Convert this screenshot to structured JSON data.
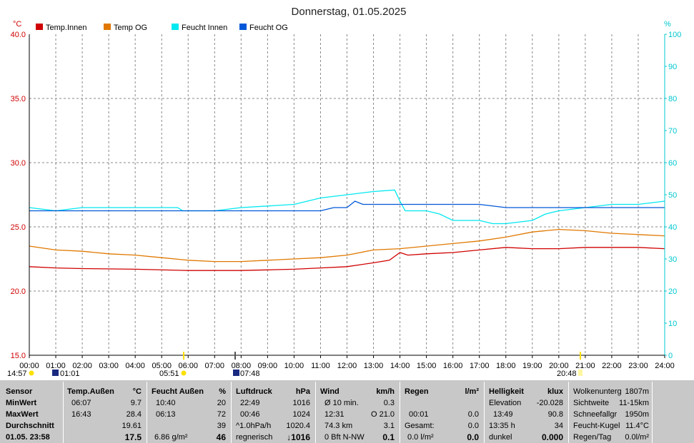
{
  "chart_data": {
    "type": "line",
    "title": "Donnerstag, 01.05.2025",
    "left_unit": "°C",
    "right_unit": "%",
    "ylim_left": [
      15,
      40
    ],
    "ylim_right": [
      0,
      100
    ],
    "left_ticks": [
      "15.0",
      "20.0",
      "25.0",
      "30.0",
      "35.0",
      "40.0"
    ],
    "right_ticks": [
      "0",
      "10",
      "20",
      "30",
      "40",
      "50",
      "60",
      "70",
      "80",
      "90",
      "100"
    ],
    "x_ticks": [
      "00:00",
      "01:00",
      "02:00",
      "03:00",
      "04:00",
      "05:00",
      "06:00",
      "07:00",
      "08:00",
      "09:00",
      "10:00",
      "11:00",
      "12:00",
      "13:00",
      "14:00",
      "15:00",
      "16:00",
      "17:00",
      "18:00",
      "19:00",
      "20:00",
      "21:00",
      "22:00",
      "23:00",
      "24:00"
    ],
    "grid": true,
    "legend_position": "top",
    "series": [
      {
        "name": "Temp.Innen",
        "color": "#d00000",
        "axis": "left",
        "points": [
          [
            0,
            21.9
          ],
          [
            1,
            21.8
          ],
          [
            2,
            21.75
          ],
          [
            4,
            21.7
          ],
          [
            6,
            21.6
          ],
          [
            8,
            21.6
          ],
          [
            9,
            21.65
          ],
          [
            10,
            21.7
          ],
          [
            11,
            21.8
          ],
          [
            12,
            21.9
          ],
          [
            13,
            22.2
          ],
          [
            13.6,
            22.4
          ],
          [
            14,
            23.0
          ],
          [
            14.3,
            22.8
          ],
          [
            15,
            22.9
          ],
          [
            16,
            23.0
          ],
          [
            17,
            23.2
          ],
          [
            18,
            23.4
          ],
          [
            19,
            23.3
          ],
          [
            20,
            23.3
          ],
          [
            21,
            23.4
          ],
          [
            22,
            23.4
          ],
          [
            23,
            23.4
          ],
          [
            24,
            23.3
          ]
        ]
      },
      {
        "name": "Temp OG",
        "color": "#e07800",
        "axis": "left",
        "points": [
          [
            0,
            23.5
          ],
          [
            1,
            23.2
          ],
          [
            2,
            23.1
          ],
          [
            3,
            22.9
          ],
          [
            4,
            22.8
          ],
          [
            5,
            22.6
          ],
          [
            6,
            22.4
          ],
          [
            7,
            22.3
          ],
          [
            8,
            22.3
          ],
          [
            9,
            22.4
          ],
          [
            10,
            22.5
          ],
          [
            11,
            22.6
          ],
          [
            12,
            22.8
          ],
          [
            13,
            23.2
          ],
          [
            14,
            23.3
          ],
          [
            15,
            23.5
          ],
          [
            16,
            23.7
          ],
          [
            17,
            23.9
          ],
          [
            18,
            24.2
          ],
          [
            19,
            24.6
          ],
          [
            20,
            24.8
          ],
          [
            21,
            24.7
          ],
          [
            22,
            24.5
          ],
          [
            23,
            24.4
          ],
          [
            24,
            24.3
          ]
        ]
      },
      {
        "name": "Feucht Innen",
        "color": "#00e8f0",
        "axis": "right",
        "points": [
          [
            0,
            46
          ],
          [
            1,
            45
          ],
          [
            2,
            46
          ],
          [
            4,
            46
          ],
          [
            5.6,
            46
          ],
          [
            5.8,
            45
          ],
          [
            6,
            45
          ],
          [
            7,
            45
          ],
          [
            8,
            46
          ],
          [
            9,
            46.5
          ],
          [
            10,
            47
          ],
          [
            11,
            49
          ],
          [
            12,
            50
          ],
          [
            13,
            51
          ],
          [
            13.8,
            51.5
          ],
          [
            14,
            48
          ],
          [
            14.2,
            45
          ],
          [
            15,
            45
          ],
          [
            15.5,
            44
          ],
          [
            16,
            42
          ],
          [
            17,
            42
          ],
          [
            17.5,
            41
          ],
          [
            18,
            41
          ],
          [
            19,
            42
          ],
          [
            19.5,
            44
          ],
          [
            20,
            45
          ],
          [
            21,
            46
          ],
          [
            22,
            47
          ],
          [
            23,
            47
          ],
          [
            24,
            48
          ]
        ]
      },
      {
        "name": "Feucht OG",
        "color": "#0058d8",
        "axis": "right",
        "points": [
          [
            0,
            45
          ],
          [
            2,
            45
          ],
          [
            4,
            45
          ],
          [
            6,
            45
          ],
          [
            8,
            45
          ],
          [
            10,
            45
          ],
          [
            11,
            45
          ],
          [
            11.5,
            46
          ],
          [
            12,
            46
          ],
          [
            12.3,
            48
          ],
          [
            12.6,
            47
          ],
          [
            13,
            47
          ],
          [
            14,
            47
          ],
          [
            15,
            47
          ],
          [
            16,
            47
          ],
          [
            17,
            47
          ],
          [
            18,
            46
          ],
          [
            20,
            46
          ],
          [
            21,
            46
          ],
          [
            22,
            46
          ],
          [
            24,
            46
          ]
        ]
      }
    ]
  },
  "sun_events": {
    "sunrise": "05:51",
    "sunset": "20:48",
    "moonset": "01:01",
    "moonrise": "07:48",
    "sun_duration": "14:57"
  },
  "stats": {
    "sensor": {
      "head": "Sensor",
      "min": "MinWert",
      "max": "MaxWert",
      "avg": "Durchschnitt",
      "now": "01.05. 23:58"
    },
    "temp": {
      "head": "Temp.Außen",
      "unit": "°C",
      "min_t": "06:07",
      "min_v": "9.7",
      "max_t": "16:43",
      "max_v": "28.4",
      "avg_v": "19.61",
      "now_v": "17.5"
    },
    "feucht": {
      "head": "Feucht Außen",
      "unit": "%",
      "min_t": "10:40",
      "min_v": "20",
      "max_t": "06:13",
      "max_v": "72",
      "avg_v": "39",
      "abs": "6.86 g/m²",
      "now_v": "46"
    },
    "druck": {
      "head": "Luftdruck",
      "unit": "hPa",
      "min_t": "22:49",
      "min_v": "1016",
      "max_t": "00:46",
      "max_v": "1024",
      "trend_l": "^1.0hPa/h",
      "trend_v": "1020.4",
      "fc": "regnerisch",
      "now_v": "↓1016"
    },
    "wind": {
      "head": "Wind",
      "unit": "km/h",
      "l1": "Ø 10 min.",
      "v1": "0.3",
      "l2": "12:31",
      "v2": "O 21.0",
      "l3": "74.3 km",
      "v3": "3.1",
      "l4": "0 Bft N-NW",
      "now_v": "0.1"
    },
    "regen": {
      "head": "Regen",
      "unit": "l/m²",
      "l2": "00:01",
      "v2": "0.0",
      "l3": "Gesamt:",
      "v3": "0.0",
      "l4": "0.0 l/m²",
      "now_v": "0.0"
    },
    "hell": {
      "head": "Helligkeit",
      "unit": "klux",
      "l1": "Elevation",
      "v1": "-20.028",
      "l2": "13:49",
      "v2": "90.8",
      "l3": "13:35 h",
      "v3": "34",
      "l4": "dunkel",
      "now_v": "0.000"
    },
    "extra": {
      "l1": "Wolkenunterg",
      "v1": "1807m",
      "l2": "Sichtweite",
      "v2": "11-15km",
      "l3": "Schneefallgr",
      "v3": "1950m",
      "l4": "Feucht-Kugel",
      "v4": "11.4°C",
      "l5": "Regen/Tag",
      "v5": "0.0l/m²"
    }
  }
}
